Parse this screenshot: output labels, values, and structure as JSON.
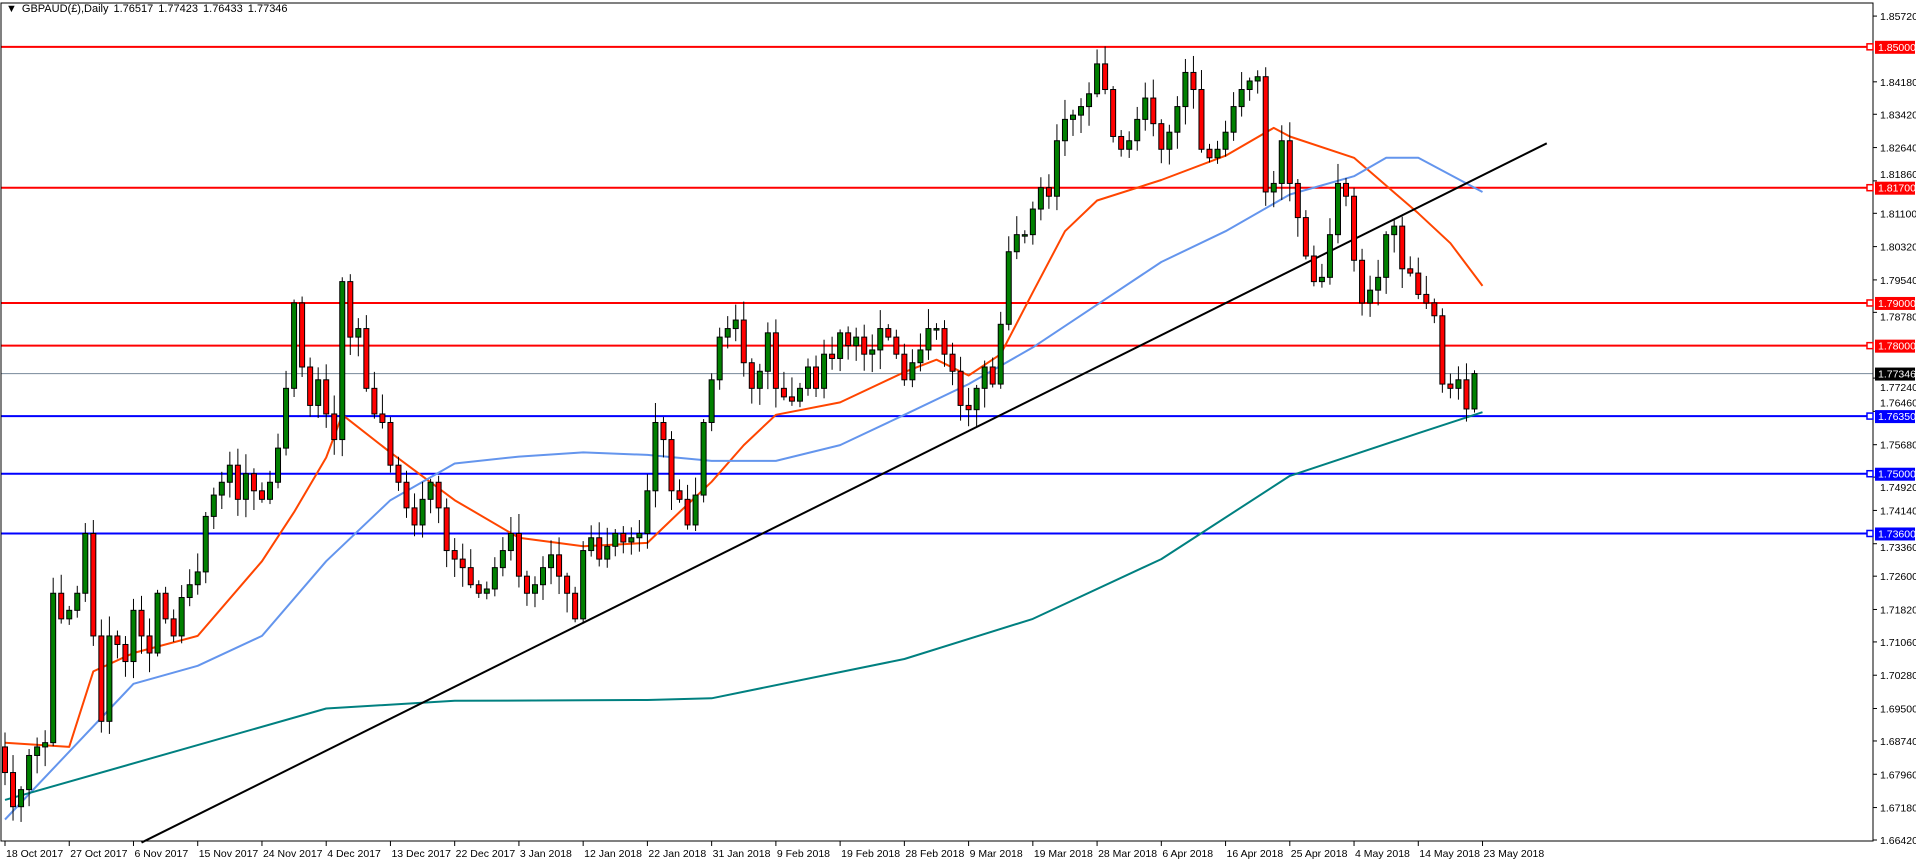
{
  "header": {
    "symbol": "GBPAUD(£),Daily",
    "open": "1.76517",
    "high": "1.77423",
    "low": "1.76433",
    "close": "1.77346",
    "menu_icon": "triangle-down-icon"
  },
  "colors": {
    "bull": "#008000",
    "bear": "#ff0000",
    "ma_fast": "#ff4500",
    "ma_mid": "#6495ed",
    "ma_slow": "#008080",
    "resistance": "#ff0000",
    "support": "#0000ff",
    "trendline": "#000000",
    "price_line": "#778899"
  },
  "chart_data": {
    "type": "candlestick",
    "title": "GBPAUD(£),Daily",
    "ylim": [
      1.6642,
      1.8572
    ],
    "grid": false,
    "y_ticks": [
      "1.85720",
      "1.84180",
      "1.83420",
      "1.82640",
      "1.81860",
      "1.81100",
      "1.80320",
      "1.79540",
      "1.78780",
      "1.77240",
      "1.76460",
      "1.75680",
      "1.74920",
      "1.74140",
      "1.73360",
      "1.72600",
      "1.71820",
      "1.71060",
      "1.70280",
      "1.69500",
      "1.68740",
      "1.67960",
      "1.67180",
      "1.66420"
    ],
    "x_ticks": [
      {
        "bar": 0,
        "label": "18 Oct 2017"
      },
      {
        "bar": 8,
        "label": "27 Oct 2017"
      },
      {
        "bar": 16,
        "label": "6 Nov 2017"
      },
      {
        "bar": 24,
        "label": "15 Nov 2017"
      },
      {
        "bar": 32,
        "label": "24 Nov 2017"
      },
      {
        "bar": 40,
        "label": "4 Dec 2017"
      },
      {
        "bar": 48,
        "label": "13 Dec 2017"
      },
      {
        "bar": 56,
        "label": "22 Dec 2017"
      },
      {
        "bar": 64,
        "label": "3 Jan 2018"
      },
      {
        "bar": 72,
        "label": "12 Jan 2018"
      },
      {
        "bar": 80,
        "label": "22 Jan 2018"
      },
      {
        "bar": 88,
        "label": "31 Jan 2018"
      },
      {
        "bar": 96,
        "label": "9 Feb 2018"
      },
      {
        "bar": 104,
        "label": "19 Feb 2018"
      },
      {
        "bar": 112,
        "label": "28 Feb 2018"
      },
      {
        "bar": 120,
        "label": "9 Mar 2018"
      },
      {
        "bar": 128,
        "label": "19 Mar 2018"
      },
      {
        "bar": 136,
        "label": "28 Mar 2018"
      },
      {
        "bar": 144,
        "label": "6 Apr 2018"
      },
      {
        "bar": 152,
        "label": "16 Apr 2018"
      },
      {
        "bar": 160,
        "label": "25 Apr 2018"
      },
      {
        "bar": 168,
        "label": "4 May 2018"
      },
      {
        "bar": 176,
        "label": "14 May 2018"
      },
      {
        "bar": 184,
        "label": "23 May 2018"
      }
    ],
    "first_open": 1.686,
    "closes": [
      1.68,
      1.672,
      1.676,
      1.684,
      1.686,
      1.687,
      1.722,
      1.716,
      1.718,
      1.722,
      1.736,
      1.712,
      1.692,
      1.712,
      1.71,
      1.706,
      1.718,
      1.712,
      1.708,
      1.722,
      1.716,
      1.712,
      1.721,
      1.724,
      1.727,
      1.74,
      1.745,
      1.748,
      1.752,
      1.744,
      1.75,
      1.746,
      1.744,
      1.748,
      1.756,
      1.77,
      1.79,
      1.775,
      1.766,
      1.772,
      1.764,
      1.758,
      1.795,
      1.782,
      1.784,
      1.77,
      1.764,
      1.762,
      1.752,
      1.748,
      1.742,
      1.738,
      1.744,
      1.748,
      1.742,
      1.732,
      1.73,
      1.728,
      1.724,
      1.722,
      1.723,
      1.728,
      1.732,
      1.736,
      1.726,
      1.722,
      1.724,
      1.728,
      1.731,
      1.726,
      1.722,
      1.716,
      1.732,
      1.735,
      1.73,
      1.733,
      1.736,
      1.734,
      1.735,
      1.736,
      1.746,
      1.762,
      1.758,
      1.746,
      1.744,
      1.738,
      1.745,
      1.762,
      1.772,
      1.782,
      1.784,
      1.786,
      1.776,
      1.77,
      1.774,
      1.783,
      1.77,
      1.768,
      1.767,
      1.77,
      1.775,
      1.77,
      1.778,
      1.777,
      1.783,
      1.78,
      1.782,
      1.778,
      1.779,
      1.784,
      1.782,
      1.778,
      1.772,
      1.776,
      1.779,
      1.784,
      1.784,
      1.778,
      1.774,
      1.766,
      1.765,
      1.77,
      1.775,
      1.771,
      1.785,
      1.802,
      1.806,
      1.806,
      1.812,
      1.817,
      1.815,
      1.828,
      1.833,
      1.834,
      1.836,
      1.839,
      1.846,
      1.84,
      1.829,
      1.826,
      1.828,
      1.833,
      1.838,
      1.832,
      1.826,
      1.83,
      1.836,
      1.844,
      1.84,
      1.826,
      1.824,
      1.826,
      1.83,
      1.836,
      1.84,
      1.842,
      1.843,
      1.816,
      1.818,
      1.828,
      1.818,
      1.81,
      1.801,
      1.795,
      1.796,
      1.806,
      1.818,
      1.815,
      1.8,
      1.79,
      1.793,
      1.796,
      1.806,
      1.808,
      1.798,
      1.797,
      1.792,
      1.79,
      1.787,
      1.771,
      1.77,
      1.772,
      1.76517,
      1.77346
    ],
    "last_bar": {
      "open": 1.76517,
      "high": 1.77423,
      "low": 1.76433,
      "close": 1.77346
    },
    "moving_averages": [
      {
        "role": "fast",
        "points": [
          [
            0,
            1.687
          ],
          [
            8,
            1.686
          ],
          [
            11,
            1.7037
          ],
          [
            16,
            1.708
          ],
          [
            24,
            1.712
          ],
          [
            32,
            1.7295
          ],
          [
            36,
            1.741
          ],
          [
            40,
            1.7538
          ],
          [
            42,
            1.7638
          ],
          [
            48,
            1.755
          ],
          [
            56,
            1.7438
          ],
          [
            64,
            1.735
          ],
          [
            72,
            1.733
          ],
          [
            80,
            1.7338
          ],
          [
            84,
            1.741
          ],
          [
            88,
            1.7481
          ],
          [
            92,
            1.7567
          ],
          [
            96,
            1.7638
          ],
          [
            104,
            1.7667
          ],
          [
            112,
            1.7738
          ],
          [
            116,
            1.7767
          ],
          [
            120,
            1.773
          ],
          [
            124,
            1.778
          ],
          [
            128,
            1.7925
          ],
          [
            132,
            1.8068
          ],
          [
            136,
            1.814
          ],
          [
            144,
            1.8188
          ],
          [
            152,
            1.8245
          ],
          [
            158,
            1.831
          ],
          [
            160,
            1.829
          ],
          [
            168,
            1.824
          ],
          [
            176,
            1.811
          ],
          [
            180,
            1.804
          ],
          [
            184,
            1.794
          ]
        ]
      },
      {
        "role": "mid",
        "points": [
          [
            0,
            1.669
          ],
          [
            16,
            1.7008
          ],
          [
            24,
            1.705
          ],
          [
            32,
            1.712
          ],
          [
            40,
            1.7295
          ],
          [
            48,
            1.7438
          ],
          [
            56,
            1.7524
          ],
          [
            64,
            1.754
          ],
          [
            72,
            1.755
          ],
          [
            80,
            1.7544
          ],
          [
            88,
            1.753
          ],
          [
            96,
            1.753
          ],
          [
            104,
            1.7567
          ],
          [
            112,
            1.7638
          ],
          [
            120,
            1.771
          ],
          [
            128,
            1.7796
          ],
          [
            136,
            1.7896
          ],
          [
            144,
            1.7996
          ],
          [
            152,
            1.8068
          ],
          [
            160,
            1.8154
          ],
          [
            168,
            1.8197
          ],
          [
            172,
            1.824
          ],
          [
            176,
            1.824
          ],
          [
            184,
            1.816
          ]
        ]
      },
      {
        "role": "slow",
        "points": [
          [
            0,
            1.6736
          ],
          [
            40,
            1.695
          ],
          [
            56,
            1.6968
          ],
          [
            80,
            1.697
          ],
          [
            88,
            1.6974
          ],
          [
            112,
            1.7066
          ],
          [
            128,
            1.716
          ],
          [
            144,
            1.73
          ],
          [
            160,
            1.7495
          ],
          [
            176,
            1.7595
          ],
          [
            184,
            1.7644
          ]
        ]
      }
    ],
    "trendline": {
      "from": [
        17,
        1.6636
      ],
      "to": [
        192,
        1.8274
      ]
    },
    "horizontal_levels": [
      {
        "price": "1.85000",
        "kind": "resistance"
      },
      {
        "price": "1.81700",
        "kind": "resistance"
      },
      {
        "price": "1.79000",
        "kind": "resistance"
      },
      {
        "price": "1.78000",
        "kind": "resistance"
      },
      {
        "price": "1.76350",
        "kind": "support"
      },
      {
        "price": "1.75000",
        "kind": "support"
      },
      {
        "price": "1.73600",
        "kind": "support"
      }
    ],
    "current_price": "1.77346"
  }
}
